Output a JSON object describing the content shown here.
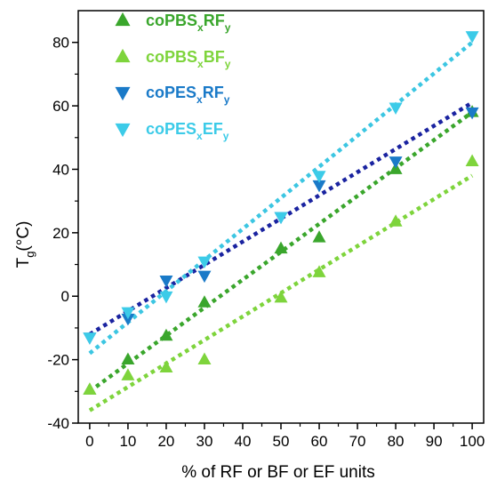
{
  "chart_data": {
    "type": "scatter",
    "title": "",
    "xlabel": "% of RF or BF or EF  units",
    "ylabel": {
      "main": "T",
      "sub": "g",
      "rest": "(°C)"
    },
    "xlim": [
      -3,
      103
    ],
    "ylim": [
      -40,
      90
    ],
    "xticks": [
      0,
      10,
      20,
      30,
      40,
      50,
      60,
      70,
      80,
      90,
      100
    ],
    "yticks": [
      -40,
      -20,
      0,
      20,
      40,
      60,
      80
    ],
    "grid": false,
    "legend_position": "top-left",
    "series": [
      {
        "name": {
          "base": "coPBS",
          "sub1": "x",
          "mid": "RF",
          "sub2": "y"
        },
        "marker": "triangle-up",
        "color": "#3aa62c",
        "trend_color": "#3aa62c",
        "trend_style": "dotted",
        "x": [
          0,
          10,
          20,
          30,
          50,
          60,
          80,
          100
        ],
        "y": [
          -29.5,
          -20,
          -12.5,
          -2,
          15,
          18.5,
          40,
          58
        ],
        "trend": [
          [
            0,
            -30
          ],
          [
            100,
            58
          ]
        ]
      },
      {
        "name": {
          "base": "coPBS",
          "sub1": "x",
          "mid": "BF",
          "sub2": "y"
        },
        "marker": "triangle-up",
        "color": "#7ed43c",
        "trend_color": "#7ed43c",
        "trend_style": "dotted",
        "x": [
          0,
          10,
          20,
          30,
          50,
          60,
          80,
          100
        ],
        "y": [
          -29.5,
          -25,
          -22.5,
          -20,
          -0.5,
          7.5,
          23.5,
          42.5
        ],
        "trend": [
          [
            0,
            -36
          ],
          [
            100,
            38
          ]
        ]
      },
      {
        "name": {
          "base": "coPES",
          "sub1": "x",
          "mid": "RF",
          "sub2": "y"
        },
        "marker": "triangle-down",
        "color": "#1a7ac8",
        "trend_color": "#1a23a0",
        "trend_style": "dotted",
        "x": [
          0,
          10,
          20,
          30,
          50,
          60,
          80,
          100
        ],
        "y": [
          -13,
          -7,
          5,
          6.5,
          25,
          35,
          42.5,
          58
        ],
        "trend": [
          [
            0,
            -12
          ],
          [
            100,
            61
          ]
        ]
      },
      {
        "name": {
          "base": "coPES",
          "sub1": "x",
          "mid": "EF",
          "sub2": "y"
        },
        "marker": "triangle-down",
        "color": "#3ccbe8",
        "trend_color": "#3cc6e2",
        "trend_style": "dotted",
        "x": [
          0,
          10,
          20,
          30,
          50,
          60,
          80,
          100
        ],
        "y": [
          -13,
          -5,
          0,
          11,
          25,
          38,
          59.5,
          82
        ],
        "trend": [
          [
            0,
            -18
          ],
          [
            100,
            80
          ]
        ]
      }
    ]
  }
}
